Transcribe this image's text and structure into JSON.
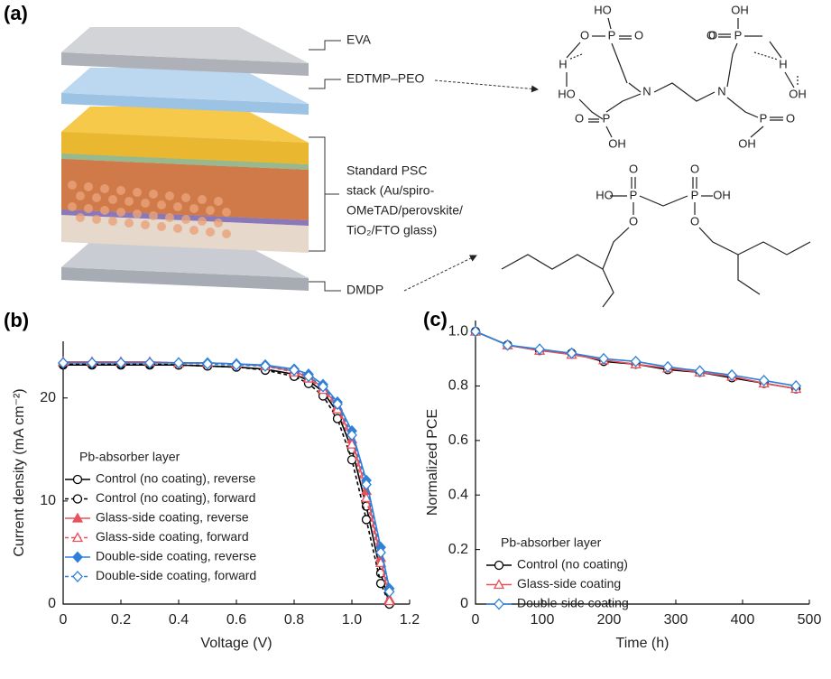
{
  "diagram": {
    "panel": "(a)",
    "layers": [
      "EVA",
      "EDTMP–PEO",
      "DMDP"
    ],
    "stack_label": [
      "Standard PSC",
      "stack (Au/spiro-",
      "OMeTAD/perovskite/",
      "TiO₂/FTO glass)"
    ],
    "edtmp_atoms": [
      "HO",
      "P",
      "O",
      "O",
      "H",
      "HO",
      "P",
      "O",
      "OH",
      "N",
      "N",
      "OH",
      "P",
      "O",
      "O",
      "H",
      "OH",
      "P",
      "O",
      "OH"
    ],
    "dmdp_atoms": [
      "HO",
      "P",
      "O",
      "O",
      "P",
      "OH",
      "O",
      "O"
    ]
  },
  "chart_data": [
    {
      "type": "line",
      "panel": "(b)",
      "xlabel": "Voltage (V)",
      "ylabel": "Current density (mA cm⁻²)",
      "x": [
        0,
        0.1,
        0.2,
        0.3,
        0.4,
        0.5,
        0.6,
        0.7,
        0.8,
        0.85,
        0.9,
        0.95,
        1.0,
        1.05,
        1.1,
        1.13
      ],
      "xlim": [
        0,
        1.2
      ],
      "xticks": [
        0,
        0.2,
        0.4,
        0.6,
        0.8,
        {
          "value": 1,
          "label": "1.0"
        },
        {
          "value": 1.2,
          "label": "1.2"
        }
      ],
      "ylim": [
        0,
        25.5
      ],
      "yticks": [
        0,
        10,
        20
      ],
      "legend_title": "Pb-absorber layer",
      "legend": "lower left",
      "series": [
        {
          "name": "Control (no coating), reverse",
          "color": "#000000",
          "marker": "circle",
          "marker_fill": "open",
          "dashed": false,
          "values": [
            23.2,
            23.2,
            23.2,
            23.2,
            23.2,
            23.1,
            23.0,
            22.8,
            22.3,
            21.7,
            20.6,
            18.6,
            15.0,
            9.5,
            3.0,
            0
          ]
        },
        {
          "name": "Control (no coating), forward",
          "color": "#000000",
          "marker": "circle",
          "marker_fill": "open",
          "dashed": true,
          "values": [
            23.3,
            23.3,
            23.3,
            23.3,
            23.2,
            23.1,
            23.0,
            22.7,
            22.1,
            21.4,
            20.2,
            18.0,
            14.0,
            8.2,
            2.0,
            0
          ]
        },
        {
          "name": "Glass-side coating, reverse",
          "color": "#e8505b",
          "marker": "triangle",
          "marker_fill": "filled",
          "dashed": false,
          "values": [
            23.5,
            23.5,
            23.5,
            23.5,
            23.4,
            23.4,
            23.3,
            23.1,
            22.6,
            22.0,
            21.0,
            19.2,
            16.0,
            11.0,
            4.5,
            0.5
          ]
        },
        {
          "name": "Glass-side coating, forward",
          "color": "#e8505b",
          "marker": "triangle",
          "marker_fill": "open",
          "dashed": true,
          "values": [
            23.5,
            23.5,
            23.5,
            23.5,
            23.4,
            23.4,
            23.3,
            23.1,
            22.5,
            21.9,
            20.8,
            18.9,
            15.5,
            10.3,
            4.0,
            0.3
          ]
        },
        {
          "name": "Double-side coating, reverse",
          "color": "#2f80d8",
          "marker": "diamond",
          "marker_fill": "filled",
          "dashed": false,
          "values": [
            23.4,
            23.4,
            23.4,
            23.4,
            23.4,
            23.4,
            23.3,
            23.2,
            22.8,
            22.3,
            21.3,
            19.6,
            16.8,
            12.0,
            5.5,
            1.5
          ]
        },
        {
          "name": "Double-side coating, forward",
          "color": "#2f80d8",
          "marker": "diamond",
          "marker_fill": "open",
          "dashed": true,
          "values": [
            23.4,
            23.4,
            23.4,
            23.4,
            23.4,
            23.3,
            23.2,
            23.1,
            22.7,
            22.1,
            21.1,
            19.4,
            16.4,
            11.6,
            5.0,
            1.2
          ]
        }
      ]
    },
    {
      "type": "line",
      "panel": "(c)",
      "xlabel": "Time (h)",
      "ylabel": "Normalized PCE",
      "x": [
        0,
        48,
        96,
        144,
        192,
        240,
        288,
        336,
        384,
        432,
        480
      ],
      "xlim": [
        0,
        500
      ],
      "xticks": [
        0,
        100,
        200,
        300,
        400,
        500
      ],
      "ylim": [
        0,
        1.04
      ],
      "yticks": [
        0,
        0.2,
        0.4,
        0.6,
        0.8,
        {
          "value": 1,
          "label": "1.0"
        }
      ],
      "legend_title": "Pb-absorber layer",
      "legend": "lower left",
      "series": [
        {
          "name": "Control (no coating)",
          "color": "#000000",
          "marker": "circle",
          "marker_fill": "open",
          "dashed": false,
          "values": [
            1,
            0.95,
            0.93,
            0.92,
            0.89,
            0.88,
            0.86,
            0.85,
            0.83,
            0.81,
            0.79
          ]
        },
        {
          "name": "Glass-side coating",
          "color": "#e8505b",
          "marker": "triangle",
          "marker_fill": "open",
          "dashed": false,
          "values": [
            1,
            0.95,
            0.93,
            0.915,
            0.895,
            0.88,
            0.865,
            0.85,
            0.835,
            0.81,
            0.79
          ]
        },
        {
          "name": "Double-side coating",
          "color": "#2f80d8",
          "marker": "diamond",
          "marker_fill": "open",
          "dashed": false,
          "values": [
            1,
            0.95,
            0.935,
            0.92,
            0.9,
            0.89,
            0.87,
            0.855,
            0.84,
            0.82,
            0.8
          ]
        }
      ]
    }
  ]
}
